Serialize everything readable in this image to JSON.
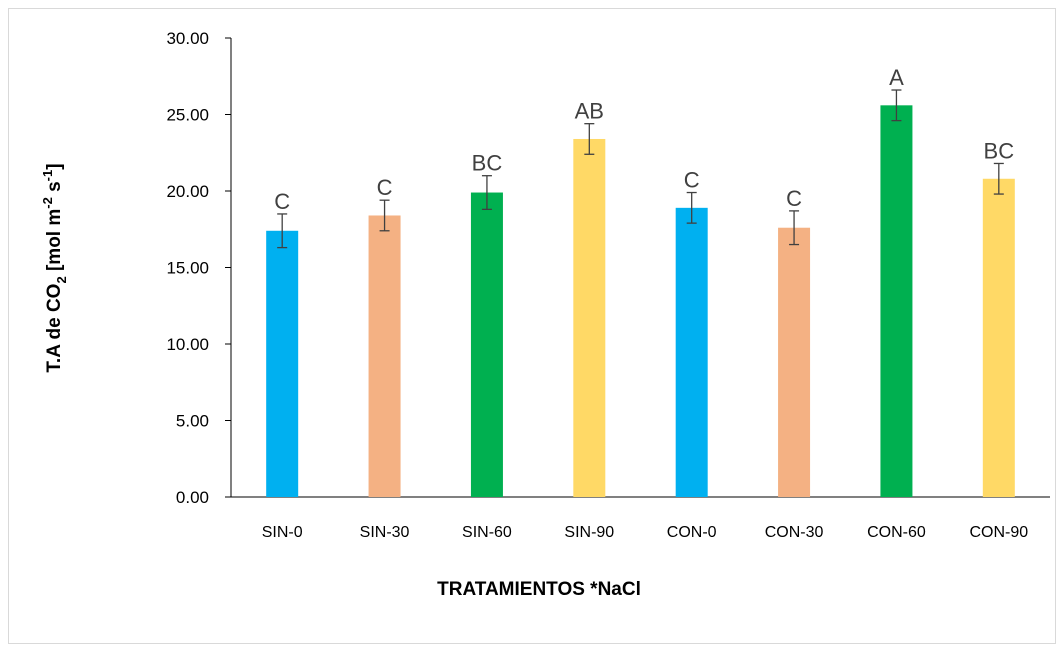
{
  "chart_data": {
    "type": "bar",
    "title": "",
    "xlabel": "TRATAMIENTOS *NaCl",
    "ylabel": {
      "prefix": "T.A de CO",
      "sub": "2",
      "mid1": " [mol m",
      "sup1": "-2",
      "mid2": " s",
      "sup2": "-1",
      "suffix": "]"
    },
    "ylim": [
      0,
      30
    ],
    "yticks": [
      "0.00",
      "5.00",
      "10.00",
      "15.00",
      "20.00",
      "25.00",
      "30.00"
    ],
    "grid": false,
    "legend": "none",
    "categories": [
      "SIN-0",
      "SIN-30",
      "SIN-60",
      "SIN-90",
      "CON-0",
      "CON-30",
      "CON-60",
      "CON-90"
    ],
    "values": [
      17.4,
      18.4,
      19.9,
      23.4,
      18.9,
      17.6,
      25.6,
      20.8
    ],
    "errors": [
      1.1,
      1.0,
      1.1,
      1.0,
      1.0,
      1.1,
      1.0,
      1.0
    ],
    "letters": [
      "C",
      "C",
      "BC",
      "AB",
      "C",
      "C",
      "A",
      "BC"
    ],
    "colors": [
      "#00b0f0",
      "#f4b183",
      "#00b050",
      "#ffd966",
      "#00b0f0",
      "#f4b183",
      "#00b050",
      "#ffd966"
    ]
  }
}
